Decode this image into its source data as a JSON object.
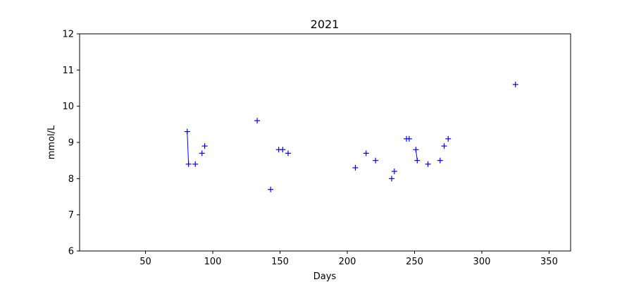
{
  "chart_data": {
    "type": "scatter",
    "title": "2021",
    "xlabel": "Days",
    "ylabel": "mmol/L",
    "xlim": [
      1,
      366
    ],
    "ylim": [
      6,
      12
    ],
    "xticks": [
      50,
      100,
      150,
      200,
      250,
      300,
      350
    ],
    "yticks": [
      6,
      7,
      8,
      9,
      10,
      11,
      12
    ],
    "grid": false,
    "marker": "+",
    "color": "#0000ff",
    "points": [
      {
        "x": 81,
        "y": 9.3
      },
      {
        "x": 82,
        "y": 8.4
      },
      {
        "x": 87,
        "y": 8.4
      },
      {
        "x": 92,
        "y": 8.7
      },
      {
        "x": 94,
        "y": 8.9
      },
      {
        "x": 133,
        "y": 9.6
      },
      {
        "x": 143,
        "y": 7.7
      },
      {
        "x": 149,
        "y": 8.8
      },
      {
        "x": 152,
        "y": 8.8
      },
      {
        "x": 156,
        "y": 8.7
      },
      {
        "x": 206,
        "y": 8.3
      },
      {
        "x": 214,
        "y": 8.7
      },
      {
        "x": 221,
        "y": 8.5
      },
      {
        "x": 233,
        "y": 8.0
      },
      {
        "x": 235,
        "y": 8.2
      },
      {
        "x": 244,
        "y": 9.1
      },
      {
        "x": 246,
        "y": 9.1
      },
      {
        "x": 251,
        "y": 8.8
      },
      {
        "x": 252,
        "y": 8.5
      },
      {
        "x": 260,
        "y": 8.4
      },
      {
        "x": 269,
        "y": 8.5
      },
      {
        "x": 272,
        "y": 8.9
      },
      {
        "x": 275,
        "y": 9.1
      },
      {
        "x": 325,
        "y": 10.6
      }
    ],
    "connections": [
      [
        0,
        1
      ],
      [
        17,
        18
      ]
    ]
  }
}
